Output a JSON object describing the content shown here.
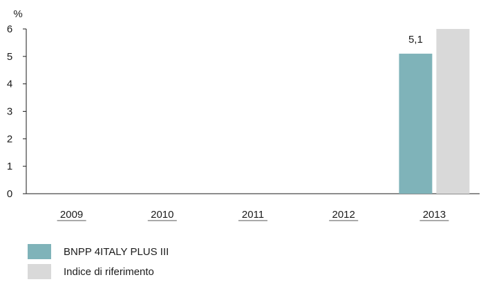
{
  "chart_data": {
    "type": "bar",
    "ylabel": "%",
    "ylim": [
      0,
      6
    ],
    "yticks": [
      "0",
      "1",
      "2",
      "3",
      "4",
      "5",
      "6"
    ],
    "categories": [
      "2009",
      "2010",
      "2011",
      "2012",
      "2013"
    ],
    "series": [
      {
        "name": "BNPP 4ITALY PLUS III",
        "color": "#7fb3b9",
        "values": [
          null,
          null,
          null,
          null,
          5.1
        ],
        "labels": [
          "",
          "",
          "",
          "",
          "5,1"
        ]
      },
      {
        "name": "Indice di riferimento",
        "color": "#d9d9d9",
        "values": [
          null,
          null,
          null,
          null,
          6.0
        ],
        "labels": [
          "",
          "",
          "",
          "",
          ""
        ]
      }
    ],
    "grid": false,
    "legend_position": "bottom-left"
  }
}
